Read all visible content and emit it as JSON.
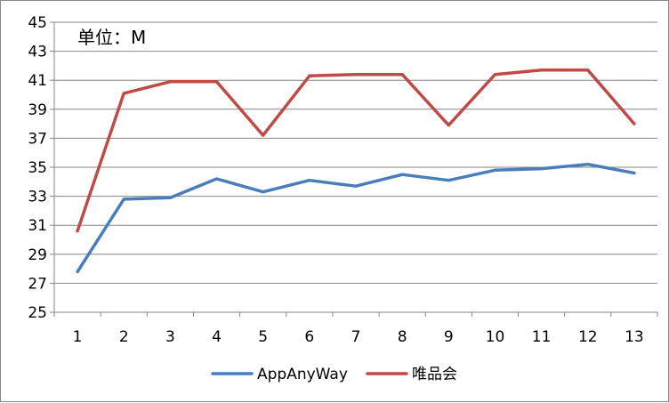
{
  "chart_data": {
    "type": "line",
    "title": "",
    "unit_label": "单位：M",
    "xlabel": "",
    "ylabel": "",
    "categories": [
      "1",
      "2",
      "3",
      "4",
      "5",
      "6",
      "7",
      "8",
      "9",
      "10",
      "11",
      "12",
      "13"
    ],
    "ylim": [
      25,
      45
    ],
    "yticks": [
      25,
      27,
      29,
      31,
      33,
      35,
      37,
      39,
      41,
      43,
      45
    ],
    "grid": true,
    "legend_position": "bottom",
    "series": [
      {
        "name": "AppAnyWay",
        "color": "#4a7ebb",
        "values": [
          27.8,
          32.8,
          32.9,
          34.2,
          33.3,
          34.1,
          33.7,
          34.5,
          34.1,
          34.8,
          34.9,
          35.2,
          34.6
        ]
      },
      {
        "name": "唯品会",
        "color": "#be4b48",
        "values": [
          30.6,
          40.1,
          40.9,
          40.9,
          37.2,
          41.3,
          41.4,
          41.4,
          37.9,
          41.4,
          41.7,
          41.7,
          38.0
        ]
      }
    ]
  }
}
